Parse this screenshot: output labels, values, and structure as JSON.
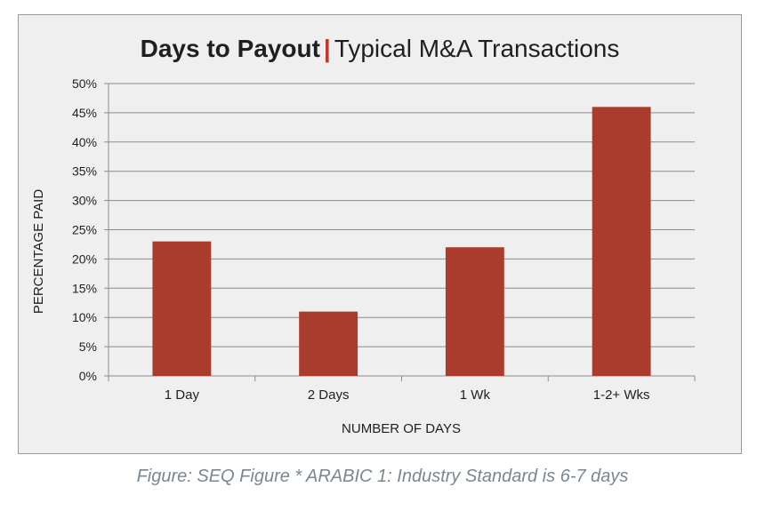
{
  "chart_data": {
    "type": "bar",
    "title": "Days to Payout",
    "title_separator": "|",
    "subtitle": "Typical M&A Transactions",
    "xlabel": "NUMBER OF DAYS",
    "ylabel": "PERCENTAGE PAID",
    "categories": [
      "1 Day",
      "2 Days",
      "1 Wk",
      "1-2+ Wks"
    ],
    "values": [
      23,
      11,
      22,
      46
    ],
    "ylim": [
      0,
      50
    ],
    "yticks": [
      "0%",
      "5%",
      "10%",
      "15%",
      "20%",
      "25%",
      "30%",
      "35%",
      "40%",
      "45%",
      "50%"
    ],
    "grid": true,
    "bar_color": "#a93c2c",
    "accent_color": "#c0392b"
  },
  "caption": "Figure: SEQ Figure * ARABIC 1: Industry Standard is 6-7 days"
}
